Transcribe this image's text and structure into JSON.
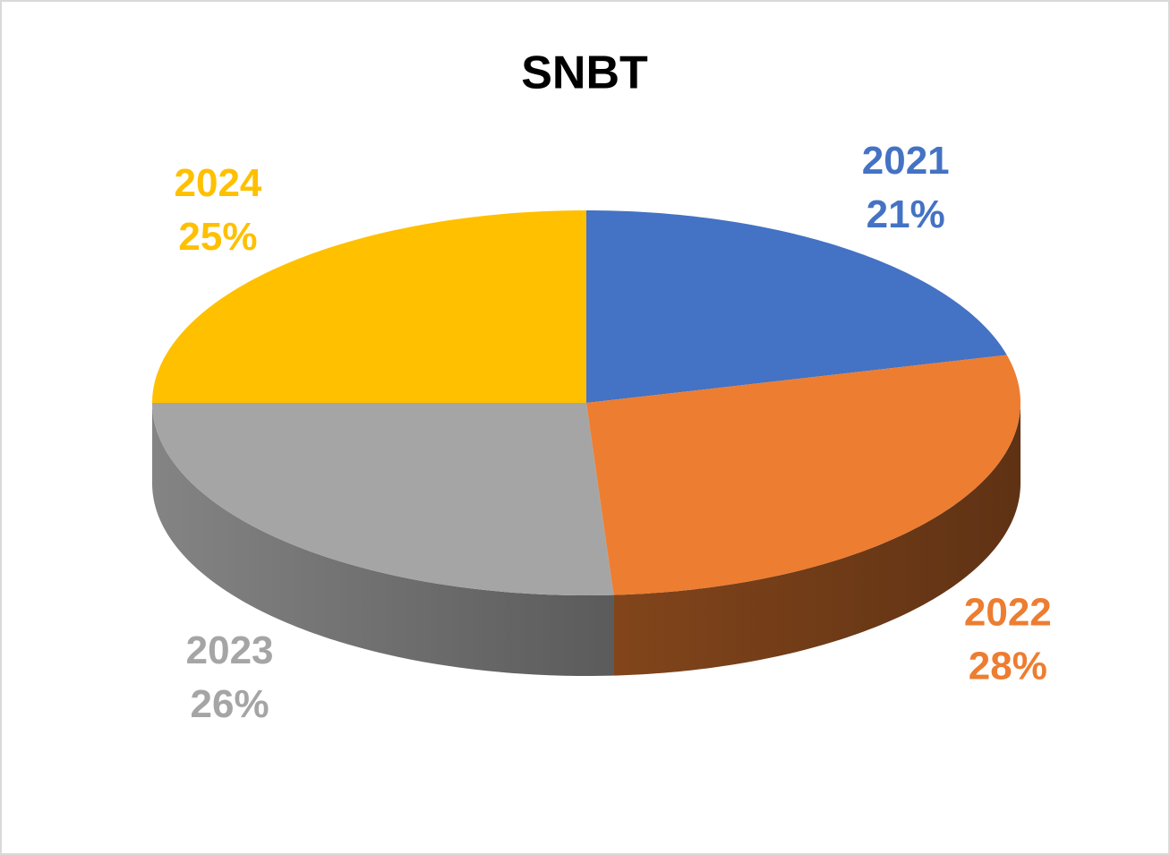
{
  "chart_data": {
    "type": "pie",
    "title": "SNBT",
    "categories": [
      "2021",
      "2022",
      "2023",
      "2024"
    ],
    "values": [
      21,
      28,
      26,
      25
    ],
    "value_labels": [
      "21%",
      "28%",
      "26%",
      "25%"
    ],
    "colors": [
      "#4472c4",
      "#ed7d31",
      "#a5a5a5",
      "#ffc000"
    ]
  }
}
